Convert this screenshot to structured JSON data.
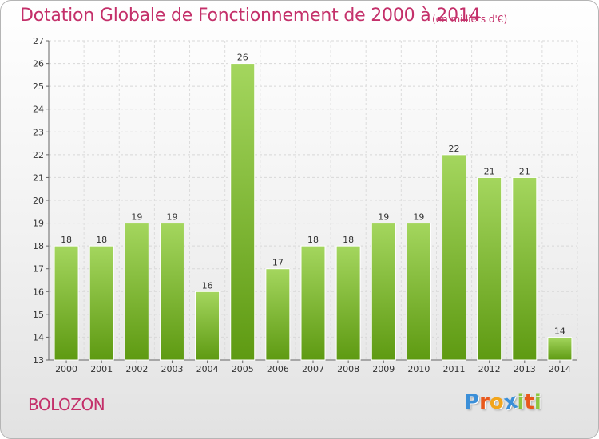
{
  "header": {
    "title": "Dotation Globale de Fonctionnement de 2000 à 2014",
    "subtitle": "(en milliers d'€)"
  },
  "footer": {
    "commune": "BOLOZON",
    "logo_letters": [
      "P",
      "r",
      "o",
      "x",
      "i",
      "t",
      "i"
    ],
    "logo_colors": [
      "#3b8fd8",
      "#e8581c",
      "#f2a51c",
      "#3b8fd8",
      "#8cc63f",
      "#e8581c",
      "#8cc63f"
    ]
  },
  "chart_data": {
    "type": "bar",
    "title": "Dotation Globale de Fonctionnement de 2000 à 2014",
    "subtitle": "(en milliers d'€)",
    "xlabel": "",
    "ylabel": "",
    "categories": [
      "2000",
      "2001",
      "2002",
      "2003",
      "2004",
      "2005",
      "2006",
      "2007",
      "2008",
      "2009",
      "2010",
      "2011",
      "2012",
      "2013",
      "2014"
    ],
    "values": [
      18,
      18,
      19,
      19,
      16,
      26,
      17,
      18,
      18,
      19,
      19,
      22,
      21,
      21,
      14
    ],
    "ylim": [
      13,
      27
    ],
    "yticks": [
      13,
      14,
      15,
      16,
      17,
      18,
      19,
      20,
      21,
      22,
      23,
      24,
      25,
      26,
      27
    ],
    "grid": true,
    "bar_color_top": "#a4d65e",
    "bar_color_bottom": "#5e9a12"
  }
}
